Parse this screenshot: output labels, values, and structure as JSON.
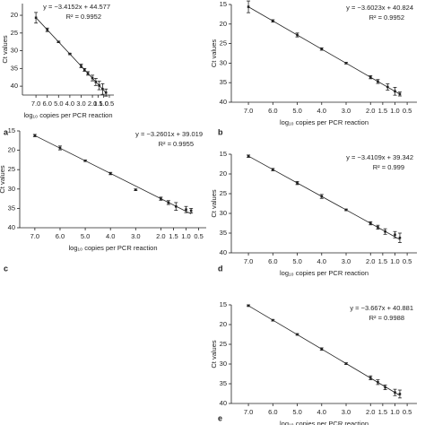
{
  "chart_data": [
    {
      "type": "scatter",
      "label": "a",
      "equation": "y = −3.4152x + 44.577",
      "r2": "R² = 0.9952",
      "fit": {
        "slope": -3.4152,
        "intercept": 44.577
      },
      "xlabel": "log₁₀ copies per PCR reaction",
      "ylabel": "Ct values",
      "x": [
        7,
        6,
        5,
        4,
        3,
        2.7,
        2.4,
        2,
        1.7,
        1.4,
        1.1,
        0.8
      ],
      "values": [
        20.7,
        24.1,
        27.5,
        30.9,
        34.3,
        35.4,
        36.4,
        37.7,
        38.8,
        39.8,
        40.8,
        41.8
      ],
      "errors": [
        1.5,
        0.5,
        0.2,
        0.2,
        0.5,
        0.4,
        0.5,
        0.8,
        1,
        1.2,
        1.5,
        1
      ],
      "xlim": [
        8.2,
        0.1
      ],
      "ylim": [
        42.5,
        16.7
      ],
      "xticks": [
        {
          "value": 7,
          "label": "7.0"
        },
        {
          "value": 6,
          "label": "6.0"
        },
        {
          "value": 5,
          "label": "5.0"
        },
        {
          "value": 4,
          "label": "4.0"
        },
        {
          "value": 3,
          "label": "3.0"
        },
        {
          "value": 2,
          "label": "2.0"
        },
        1.5,
        {
          "value": 1,
          "label": "1.0"
        },
        0.5
      ],
      "yticks": [
        20,
        25,
        30,
        35,
        40
      ]
    },
    {
      "type": "scatter",
      "label": "b",
      "equation": "y = −3.6023x + 40.824",
      "r2": "R² = 0.9952",
      "fit": {
        "slope": -3.6023,
        "intercept": 40.824
      },
      "xlabel": "log₁₀ copies per PCR reaction",
      "ylabel": "Ct values",
      "x": [
        7,
        6,
        5,
        4,
        3,
        2,
        1.7,
        1.3,
        1,
        0.8
      ],
      "values": [
        15.6,
        19.2,
        22.8,
        26.4,
        30.0,
        33.6,
        34.7,
        36.1,
        37.2,
        37.9
      ],
      "errors": [
        1.5,
        0.3,
        0.5,
        0.3,
        0.2,
        0.4,
        0.5,
        0.8,
        1.0,
        0.5
      ],
      "xlim": [
        7.7,
        0.1
      ],
      "ylim": [
        40,
        15
      ],
      "xticks": [
        {
          "value": 7,
          "label": "7.0"
        },
        {
          "value": 6,
          "label": "6.0"
        },
        {
          "value": 5,
          "label": "5.0"
        },
        {
          "value": 4,
          "label": "4.0"
        },
        {
          "value": 3,
          "label": "3.0"
        },
        {
          "value": 2,
          "label": "2.0"
        },
        1.5,
        {
          "value": 1,
          "label": "1.0"
        },
        0.5
      ],
      "yticks": [
        15,
        20,
        25,
        30,
        35,
        40
      ]
    },
    {
      "type": "scatter",
      "label": "c",
      "equation": "y = −3.2601x + 39.019",
      "r2": "R² = 0.9955",
      "fit": {
        "slope": -3.2601,
        "intercept": 39.019
      },
      "xlabel": "log₁₀ copies per PCR reaction",
      "ylabel": "Ct values",
      "x": [
        7,
        6,
        5,
        4,
        3,
        2,
        1.7,
        1.4,
        1,
        0.8
      ],
      "values": [
        16.2,
        19.4,
        22.7,
        26.0,
        30.2,
        32.5,
        33.5,
        34.5,
        35.3,
        35.6
      ],
      "errors": [
        0.3,
        0.5,
        0.2,
        0.3,
        0.2,
        0.4,
        0.5,
        1,
        0.8,
        0.6
      ],
      "xlim": [
        7.6,
        0.2
      ],
      "ylim": [
        40,
        15
      ],
      "xticks": [
        {
          "value": 7,
          "label": "7.0"
        },
        {
          "value": 6,
          "label": "6.0"
        },
        {
          "value": 5,
          "label": "5.0"
        },
        {
          "value": 4,
          "label": "4.0"
        },
        {
          "value": 3,
          "label": "3.0"
        },
        {
          "value": 2,
          "label": "2.0"
        },
        1.5,
        {
          "value": 1,
          "label": "1.0"
        },
        0.5
      ],
      "yticks": [
        15,
        20,
        25,
        30,
        35,
        40
      ]
    },
    {
      "type": "scatter",
      "label": "d",
      "equation": "y = −3.4109x + 39.342",
      "r2": "R² = 0.999",
      "fit": {
        "slope": -3.4109,
        "intercept": 39.342
      },
      "xlabel": "log₁₀ copies per PCR reaction",
      "ylabel": "Ct values",
      "x": [
        7,
        6,
        5,
        4,
        3,
        2,
        1.7,
        1.4,
        1,
        0.8
      ],
      "values": [
        15.5,
        18.9,
        22.3,
        25.7,
        29.1,
        32.5,
        33.5,
        34.6,
        35.4,
        36.2
      ],
      "errors": [
        0.3,
        0.3,
        0.4,
        0.5,
        0.2,
        0.4,
        0.5,
        0.7,
        0.8,
        1.2
      ],
      "xlim": [
        7.7,
        0.1
      ],
      "ylim": [
        40,
        15
      ],
      "xticks": [
        {
          "value": 7,
          "label": "7.0"
        },
        {
          "value": 6,
          "label": "6.0"
        },
        {
          "value": 5,
          "label": "5.0"
        },
        {
          "value": 4,
          "label": "4.0"
        },
        {
          "value": 3,
          "label": "3.0"
        },
        {
          "value": 2,
          "label": "2.0"
        },
        1.5,
        {
          "value": 1,
          "label": "1.0"
        },
        0.5
      ],
      "yticks": [
        15,
        20,
        25,
        30,
        35,
        40
      ]
    },
    {
      "type": "scatter",
      "label": "e",
      "equation": "y = −3.667x + 40.881",
      "r2": "R² = 0.9988",
      "fit": {
        "slope": -3.667,
        "intercept": 40.881
      },
      "xlabel": "log₁₀ copies per PCR reaction",
      "ylabel": "Ct values",
      "x": [
        7,
        6,
        5,
        4,
        3,
        2,
        1.7,
        1.4,
        1,
        0.8
      ],
      "values": [
        15.2,
        18.9,
        22.5,
        26.2,
        29.9,
        33.5,
        34.6,
        35.9,
        37.2,
        37.6
      ],
      "errors": [
        0.2,
        0.2,
        0.2,
        0.3,
        0.2,
        0.5,
        0.6,
        0.6,
        0.8,
        1.0
      ],
      "xlim": [
        7.7,
        0.1
      ],
      "ylim": [
        40,
        15
      ],
      "xticks": [
        {
          "value": 7,
          "label": "7.0"
        },
        {
          "value": 6,
          "label": "6.0"
        },
        {
          "value": 5,
          "label": "5.0"
        },
        {
          "value": 4,
          "label": "4.0"
        },
        {
          "value": 3,
          "label": "3.0"
        },
        {
          "value": 2,
          "label": "2.0"
        },
        1.5,
        {
          "value": 1,
          "label": "1.0"
        },
        0.5
      ],
      "yticks": [
        15,
        20,
        25,
        30,
        35,
        40
      ]
    }
  ]
}
